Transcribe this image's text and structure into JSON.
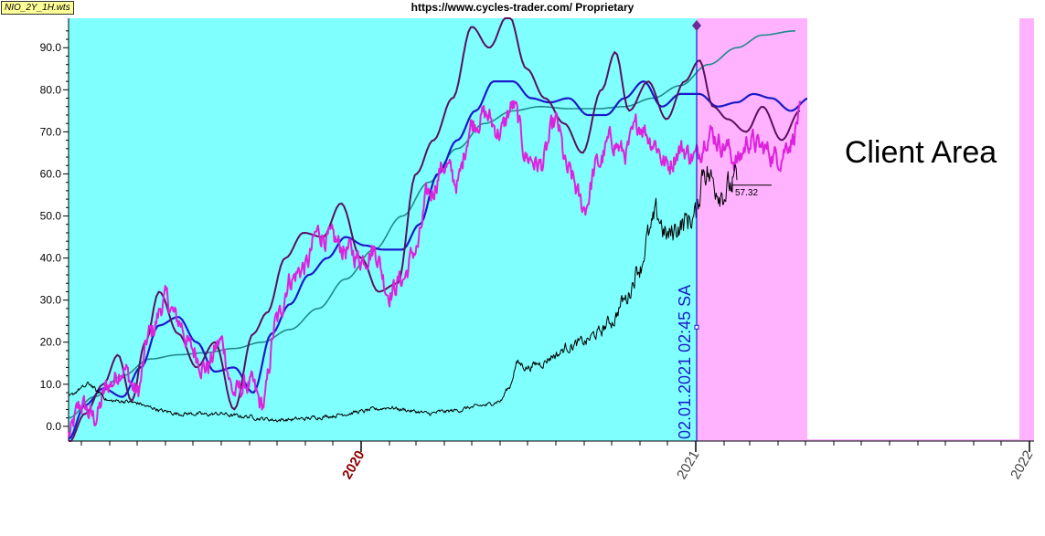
{
  "header": {
    "file_tag": "NIO_2Y_1H.wts",
    "title": "https://www.cycles-trader.com/ Proprietary"
  },
  "client_area_label": "Client Area",
  "cursor_label": "02.01.2021  02:45 SA",
  "price_tag": "57.32",
  "colors": {
    "history_bg": "#80ffff",
    "future_bg": "#ffb3ff",
    "magenta_series": "#dd22dd",
    "blue_series": "#1a1ac8",
    "dark_purple_series": "#5a1060",
    "teal_series": "#1f8a8a",
    "price_series": "#000000",
    "year_2020": "#8b0000",
    "year_other": "#444444"
  },
  "chart_data": {
    "type": "line",
    "title": "",
    "xlabel": "",
    "ylabel": "",
    "ylim": [
      -3.5,
      97
    ],
    "xlim": [
      "2019-02-15",
      "2022-01-06"
    ],
    "grid": false,
    "y_ticks": [
      "0.0",
      "10.0",
      "20.0",
      "30.0",
      "40.0",
      "50.0",
      "60.0",
      "70.0",
      "80.0",
      "90.0"
    ],
    "x_tick_labels": [
      "2020",
      "2021",
      "2022"
    ],
    "x_ticks": [
      "2020-01-01",
      "2021-01-01",
      "2022-01-01"
    ],
    "regions": [
      {
        "x": [
          "2019-02-15",
          "2021-01-02"
        ],
        "color": "history_bg"
      },
      {
        "x": [
          "2021-01-02",
          "2022-01-06"
        ],
        "color": "future_bg"
      }
    ],
    "series": [
      {
        "key": "teal",
        "x": [
          "2019-02-15",
          "2019-03-15",
          "2019-04-15",
          "2019-05-15",
          "2019-06-15",
          "2019-07-15",
          "2019-08-15",
          "2019-09-15",
          "2019-10-15",
          "2019-11-15",
          "2019-12-15",
          "2020-01-15",
          "2020-02-15",
          "2020-03-15",
          "2020-04-15",
          "2020-05-15",
          "2020-06-15",
          "2020-07-15",
          "2020-08-15",
          "2020-09-15",
          "2020-10-15",
          "2020-11-15",
          "2020-12-15",
          "2021-01-15",
          "2021-02-15",
          "2021-03-15",
          "2021-04-20"
        ],
        "values": [
          2,
          7,
          12,
          16,
          17,
          17.5,
          18.5,
          20,
          23,
          28,
          35,
          42,
          50,
          58,
          66,
          72,
          75,
          76,
          75.5,
          75.5,
          76,
          78,
          81,
          86,
          90,
          93,
          94
        ]
      },
      {
        "key": "blue",
        "x": [
          "2019-02-15",
          "2019-03-05",
          "2019-03-25",
          "2019-04-15",
          "2019-05-05",
          "2019-05-25",
          "2019-06-15",
          "2019-07-05",
          "2019-07-25",
          "2019-08-15",
          "2019-09-05",
          "2019-09-25",
          "2019-10-15",
          "2019-11-05",
          "2019-11-25",
          "2019-12-15",
          "2020-01-05",
          "2020-01-25",
          "2020-02-15",
          "2020-03-05",
          "2020-03-25",
          "2020-04-15",
          "2020-05-05",
          "2020-05-25",
          "2020-06-15",
          "2020-07-05",
          "2020-07-25",
          "2020-08-15",
          "2020-09-05",
          "2020-09-25",
          "2020-10-15",
          "2020-11-05",
          "2020-11-25",
          "2020-12-15",
          "2021-01-05",
          "2021-01-25",
          "2021-02-15",
          "2021-03-05",
          "2021-03-25",
          "2021-04-15",
          "2021-05-05"
        ],
        "values": [
          -3,
          5,
          9,
          7,
          14,
          24,
          26,
          20,
          13,
          14,
          8,
          22,
          29,
          36,
          40,
          45,
          43,
          42,
          42,
          48,
          60,
          68,
          75,
          82,
          82,
          78,
          77,
          78,
          74,
          74,
          78,
          82,
          76,
          79,
          79,
          76,
          77,
          79,
          78,
          75,
          78
        ]
      },
      {
        "key": "dark_purple",
        "x": [
          "2019-02-15",
          "2019-03-05",
          "2019-03-25",
          "2019-04-10",
          "2019-04-25",
          "2019-05-10",
          "2019-05-25",
          "2019-06-15",
          "2019-07-05",
          "2019-07-25",
          "2019-08-15",
          "2019-09-05",
          "2019-09-20",
          "2019-10-10",
          "2019-10-30",
          "2019-11-20",
          "2019-12-10",
          "2020-01-01",
          "2020-01-20",
          "2020-02-10",
          "2020-03-01",
          "2020-03-20",
          "2020-04-10",
          "2020-05-01",
          "2020-05-20",
          "2020-06-10",
          "2020-06-30",
          "2020-07-20",
          "2020-08-10",
          "2020-08-30",
          "2020-09-20",
          "2020-10-05",
          "2020-10-20",
          "2020-11-10",
          "2020-11-30",
          "2020-12-20",
          "2021-01-05",
          "2021-01-20",
          "2021-02-05",
          "2021-02-25",
          "2021-03-15",
          "2021-04-05",
          "2021-04-25"
        ],
        "values": [
          -4,
          3,
          10,
          17,
          6,
          20,
          32,
          22,
          14,
          20,
          4,
          22,
          27,
          40,
          46,
          45,
          53,
          40,
          32,
          34,
          60,
          68,
          78,
          95,
          90,
          98,
          85,
          78,
          72,
          65,
          80,
          89,
          75,
          82,
          73,
          82,
          87,
          76,
          73,
          70,
          76,
          68,
          75
        ]
      },
      {
        "key": "magenta",
        "noise": 2.2,
        "x": [
          "2019-02-15",
          "2019-03-01",
          "2019-03-15",
          "2019-04-01",
          "2019-04-15",
          "2019-05-01",
          "2019-05-15",
          "2019-06-01",
          "2019-06-15",
          "2019-07-01",
          "2019-07-15",
          "2019-08-01",
          "2019-08-15",
          "2019-09-01",
          "2019-09-15",
          "2019-10-01",
          "2019-10-15",
          "2019-11-01",
          "2019-11-15",
          "2019-12-01",
          "2019-12-15",
          "2020-01-01",
          "2020-01-15",
          "2020-02-01",
          "2020-02-15",
          "2020-03-01",
          "2020-03-15",
          "2020-04-01",
          "2020-04-15",
          "2020-05-01",
          "2020-05-15",
          "2020-06-01",
          "2020-06-15",
          "2020-07-01",
          "2020-07-15",
          "2020-08-01",
          "2020-08-15",
          "2020-09-01",
          "2020-09-15",
          "2020-10-01",
          "2020-10-15",
          "2020-11-01",
          "2020-11-15",
          "2020-12-01",
          "2020-12-15",
          "2021-01-01",
          "2021-01-15",
          "2021-02-01",
          "2021-02-15",
          "2021-03-01",
          "2021-03-15",
          "2021-04-01",
          "2021-04-15",
          "2021-04-25"
        ],
        "values": [
          -2,
          5,
          2,
          10,
          14,
          8,
          22,
          30,
          25,
          18,
          14,
          20,
          8,
          10,
          5,
          25,
          35,
          38,
          46,
          44,
          42,
          40,
          42,
          32,
          35,
          42,
          55,
          62,
          58,
          72,
          74,
          70,
          76,
          64,
          62,
          72,
          60,
          52,
          62,
          68,
          65,
          72,
          68,
          62,
          66,
          64,
          70,
          67,
          63,
          68,
          66,
          64,
          68,
          74
        ]
      },
      {
        "key": "price",
        "noise": 1.3,
        "x": [
          "2019-02-15",
          "2019-03-01",
          "2019-03-10",
          "2019-03-20",
          "2019-04-01",
          "2019-04-15",
          "2019-05-01",
          "2019-05-15",
          "2019-06-01",
          "2019-06-15",
          "2019-07-01",
          "2019-07-15",
          "2019-08-01",
          "2019-08-15",
          "2019-09-01",
          "2019-09-15",
          "2019-10-01",
          "2019-10-15",
          "2019-11-01",
          "2019-11-15",
          "2019-12-01",
          "2019-12-15",
          "2020-01-01",
          "2020-01-15",
          "2020-02-01",
          "2020-02-15",
          "2020-03-01",
          "2020-03-15",
          "2020-04-01",
          "2020-04-15",
          "2020-05-01",
          "2020-05-15",
          "2020-06-01",
          "2020-06-10",
          "2020-06-20",
          "2020-07-01",
          "2020-07-15",
          "2020-08-01",
          "2020-08-15",
          "2020-09-01",
          "2020-09-15",
          "2020-10-01",
          "2020-10-15",
          "2020-11-01",
          "2020-11-10",
          "2020-11-20",
          "2020-12-01",
          "2020-12-15",
          "2021-01-01",
          "2021-01-10",
          "2021-01-20",
          "2021-02-01",
          "2021-02-15"
        ],
        "values": [
          7,
          9,
          10,
          8,
          6,
          6,
          5.5,
          4.5,
          3.5,
          3,
          3,
          2.8,
          3,
          2.5,
          2.3,
          1.8,
          1.5,
          1.6,
          1.8,
          2.2,
          2.5,
          3,
          3.5,
          4,
          4.5,
          4,
          3.5,
          3,
          3.5,
          3.8,
          4.5,
          5,
          6,
          9,
          15,
          14,
          15,
          17,
          19,
          20,
          22,
          25,
          30,
          38,
          45,
          50,
          45,
          48,
          50,
          62,
          58,
          56,
          58
        ]
      }
    ],
    "annotations": [
      {
        "type": "vline",
        "x": "2021-01-02",
        "label": "02.01.2021  02:45 SA"
      },
      {
        "type": "hline",
        "x": [
          "2021-02-10",
          "2021-03-25"
        ],
        "y": 57.32,
        "label": "57.32"
      }
    ]
  }
}
